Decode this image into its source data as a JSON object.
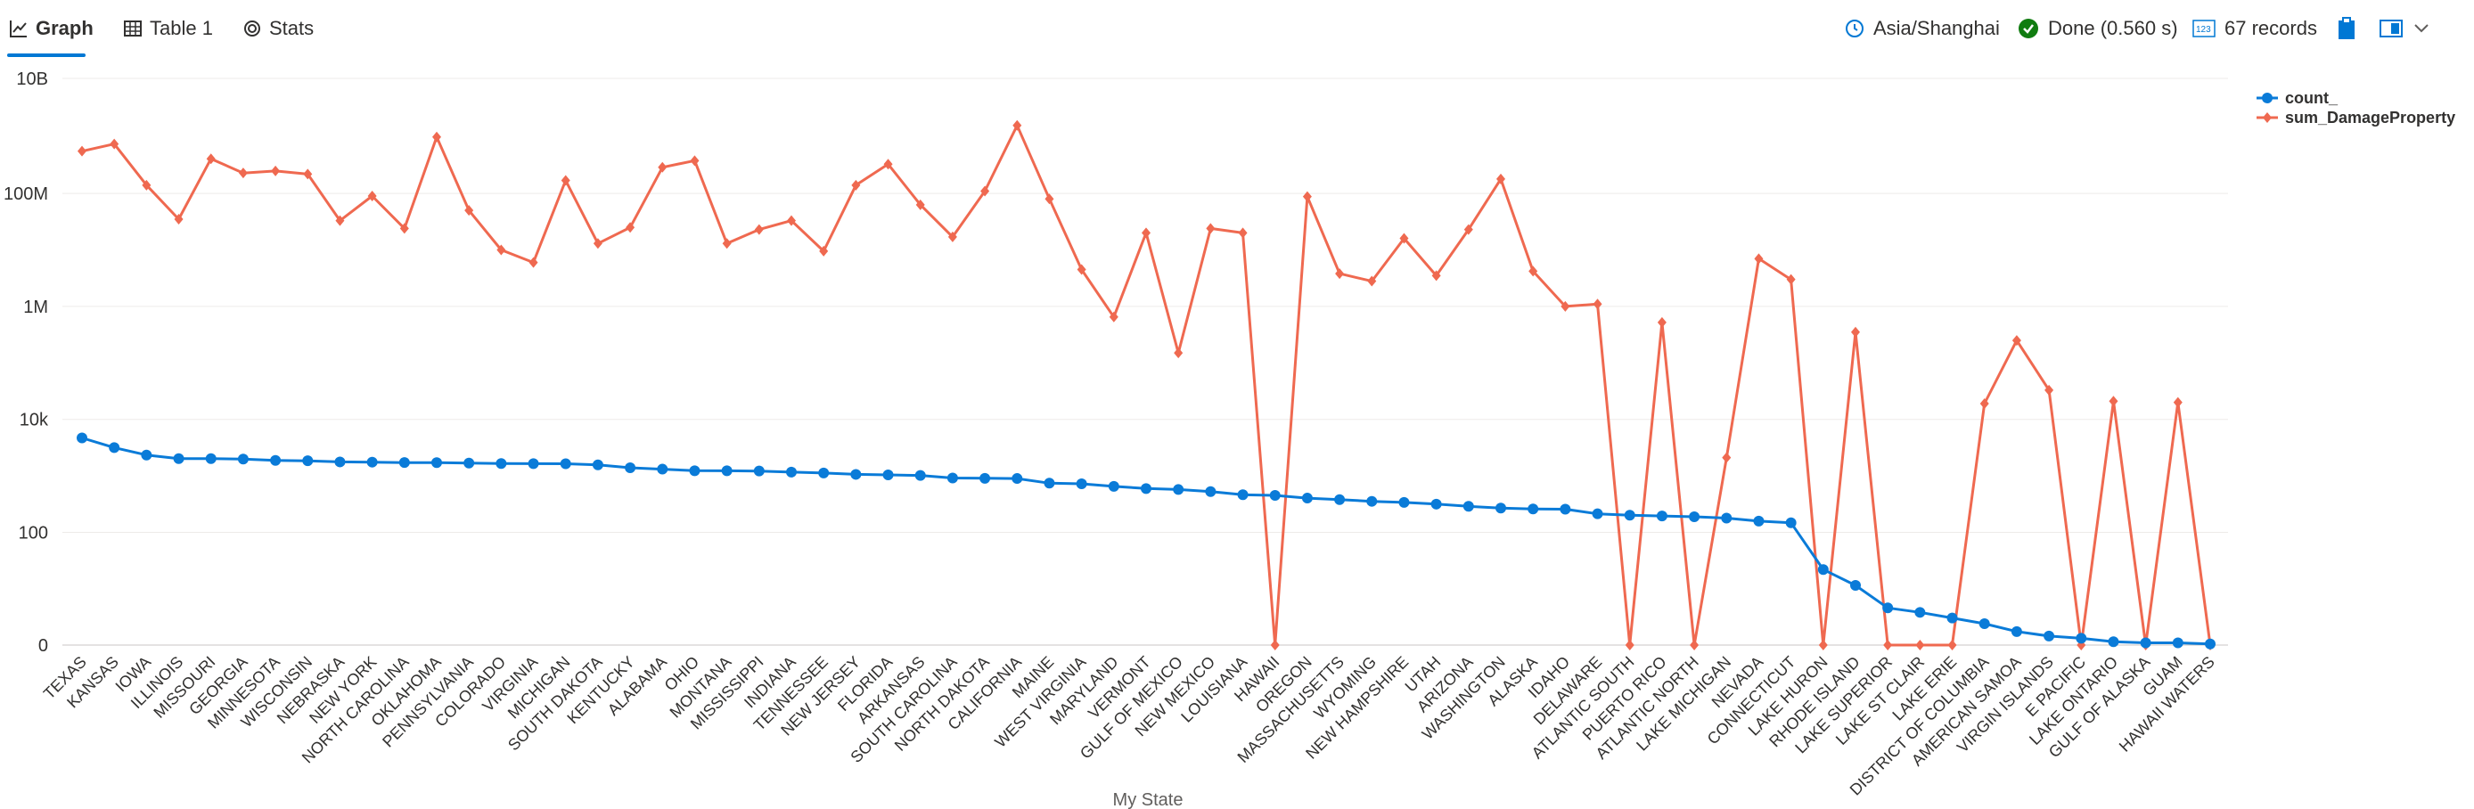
{
  "tabs": [
    {
      "label": "Graph",
      "active": true
    },
    {
      "label": "Table 1",
      "active": false
    },
    {
      "label": "Stats",
      "active": false
    }
  ],
  "status": {
    "timezone": "Asia/Shanghai",
    "query_state": "Done (0.560 s)",
    "records": "67 records"
  },
  "colors": {
    "accent": "#0078d4",
    "count": "#0a7bd8",
    "damage": "#ef6950",
    "done": "#107c10"
  },
  "icons": [
    "graph-icon",
    "table-icon",
    "stats-icon",
    "clock-icon",
    "check-icon",
    "records-icon",
    "clipboard-icon",
    "layout-icon",
    "chevron-down-icon"
  ],
  "chart_data": {
    "type": "line",
    "xlabel": "My State",
    "y_scale": "log",
    "y_ticks": [
      "0",
      "100",
      "10k",
      "1M",
      "100M",
      "10B"
    ],
    "legend_position": "top-right",
    "categories": [
      "TEXAS",
      "KANSAS",
      "IOWA",
      "ILLINOIS",
      "MISSOURI",
      "GEORGIA",
      "MINNESOTA",
      "WISCONSIN",
      "NEBRASKA",
      "NEW YORK",
      "NORTH CAROLINA",
      "OKLAHOMA",
      "PENNSYLVANIA",
      "COLORADO",
      "VIRGINIA",
      "MICHIGAN",
      "SOUTH DAKOTA",
      "KENTUCKY",
      "ALABAMA",
      "OHIO",
      "MONTANA",
      "MISSISSIPPI",
      "INDIANA",
      "TENNESSEE",
      "NEW JERSEY",
      "FLORIDA",
      "ARKANSAS",
      "SOUTH CAROLINA",
      "NORTH DAKOTA",
      "CALIFORNIA",
      "MAINE",
      "WEST VIRGINIA",
      "MARYLAND",
      "VERMONT",
      "GULF OF MEXICO",
      "NEW MEXICO",
      "LOUISIANA",
      "HAWAII",
      "OREGON",
      "MASSACHUSETTS",
      "WYOMING",
      "NEW HAMPSHIRE",
      "UTAH",
      "ARIZONA",
      "WASHINGTON",
      "ALASKA",
      "IDAHO",
      "DELAWARE",
      "ATLANTIC SOUTH",
      "PUERTO RICO",
      "ATLANTIC NORTH",
      "LAKE MICHIGAN",
      "NEVADA",
      "CONNECTICUT",
      "LAKE HURON",
      "RHODE ISLAND",
      "LAKE SUPERIOR",
      "LAKE ST CLAIR",
      "LAKE ERIE",
      "DISTRICT OF COLUMBIA",
      "AMERICAN SAMOA",
      "VIRGIN ISLANDS",
      "E PACIFIC",
      "LAKE ONTARIO",
      "GULF OF ALASKA",
      "GUAM",
      "HAWAII WATERS"
    ],
    "series": [
      {
        "name": "count_",
        "values": [
          4701,
          3166,
          2337,
          2022,
          2016,
          1983,
          1881,
          1850,
          1766,
          1750,
          1721,
          1716,
          1687,
          1654,
          1647,
          1637,
          1567,
          1391,
          1315,
          1233,
          1230,
          1218,
          1164,
          1125,
          1062,
          1042,
          1017,
          915,
          905,
          898,
          743,
          723,
          652,
          596,
          573,
          527,
          463,
          452,
          404,
          380,
          354,
          339,
          316,
          289,
          269,
          259,
          257,
          213,
          201,
          195,
          189,
          179,
          158,
          148,
          67,
          53,
          33,
          29,
          24,
          19,
          12,
          8,
          6,
          3,
          2,
          2,
          1
        ]
      },
      {
        "name": "sum_DamageProperty",
        "values": [
          560000000,
          750000000,
          140000000,
          35000000,
          410000000,
          230000000,
          250000000,
          220000000,
          33000000,
          90000000,
          24000000,
          1000000000,
          50000000,
          10000000,
          6000000,
          170000000,
          13000000,
          25000000,
          290000000,
          380000000,
          13000000,
          23000000,
          33000000,
          9500000,
          140000000,
          330000000,
          63000000,
          17000000,
          110000000,
          1600000000,
          80000000,
          4500000,
          650000,
          20000000,
          150000,
          24000000,
          20000000,
          0,
          88000000,
          3800000,
          2800000,
          16000000,
          3500000,
          23000000,
          180000000,
          4200000,
          1000000,
          1100000,
          0,
          520000,
          0,
          2100,
          7000000,
          3000000,
          0,
          350000,
          0,
          0,
          0,
          19000,
          250000,
          33000,
          0,
          21000,
          0,
          20000,
          0
        ]
      }
    ]
  }
}
